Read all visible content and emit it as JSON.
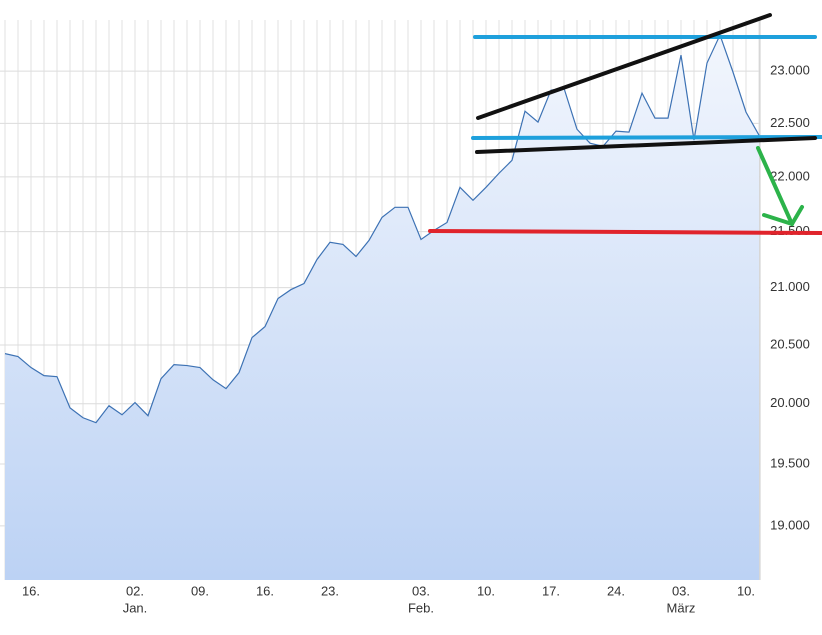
{
  "chart_data": {
    "type": "area-line",
    "categories": [
      null,
      null,
      "16.",
      null,
      null,
      null,
      null,
      null,
      null,
      null,
      "02.",
      null,
      null,
      null,
      null,
      "09.",
      null,
      null,
      null,
      null,
      "16.",
      null,
      null,
      null,
      null,
      "23.",
      null,
      null,
      null,
      null,
      null,
      null,
      "03.",
      null,
      null,
      null,
      null,
      "10.",
      null,
      null,
      null,
      null,
      "17.",
      null,
      null,
      null,
      null,
      "24.",
      null,
      null,
      null,
      null,
      "03.",
      null,
      null,
      null,
      null,
      "10.",
      null
    ],
    "month_labels": [
      {
        "value": 10,
        "label": "Jan."
      },
      {
        "value": 32,
        "label": "Feb."
      },
      {
        "value": 52,
        "label": "März"
      }
    ],
    "values": [
      20426,
      20401,
      20307,
      20238,
      20229,
      19966,
      19883,
      19842,
      19984,
      19908,
      20010,
      19900,
      20212,
      20332,
      20324,
      20307,
      20203,
      20128,
      20263,
      20564,
      20659,
      20904,
      20983,
      21036,
      21250,
      21404,
      21385,
      21277,
      21421,
      21629,
      21721,
      21721,
      21429,
      21511,
      21583,
      21904,
      21785,
      21904,
      22034,
      22154,
      22616,
      22512,
      22817,
      22835,
      22445,
      22314,
      22284,
      22427,
      22418,
      22788,
      22550,
      22550,
      23155,
      22342,
      23078,
      23351,
      22990,
      22607,
      22389
    ],
    "color": "#3d72b4",
    "ylim": [
      18573,
      23499
    ],
    "log_scale": true,
    "yticks": [
      {
        "value": 19000,
        "label": "19.000"
      },
      {
        "value": 19500,
        "label": "19.500"
      },
      {
        "value": 20000,
        "label": "20.000"
      },
      {
        "value": 20500,
        "label": "20.500"
      },
      {
        "value": 21000,
        "label": "21.000"
      },
      {
        "value": 21500,
        "label": "21.500"
      },
      {
        "value": 22000,
        "label": "22.000"
      },
      {
        "value": 22500,
        "label": "22.500"
      },
      {
        "value": 23000,
        "label": "23.000"
      }
    ],
    "grid": true
  }
}
